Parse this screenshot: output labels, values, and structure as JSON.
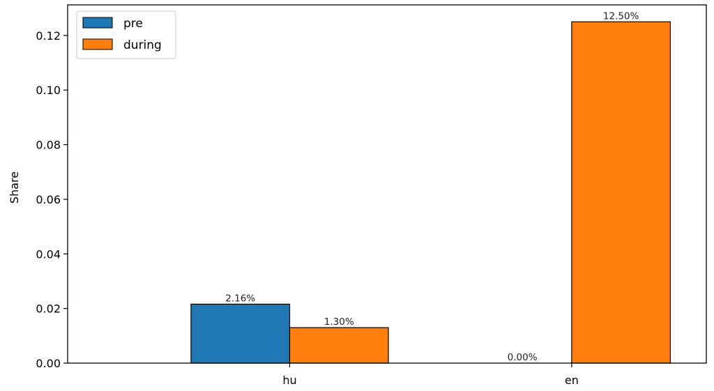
{
  "chart_data": {
    "type": "bar",
    "title": "",
    "xlabel": "",
    "ylabel": "Share",
    "categories": [
      "hu",
      "en"
    ],
    "series": [
      {
        "name": "pre",
        "values": [
          0.0216,
          0.0
        ],
        "labels": [
          "2.16%",
          "0.00%"
        ],
        "color": "#1f77b4"
      },
      {
        "name": "during",
        "values": [
          0.013,
          0.125
        ],
        "labels": [
          "1.30%",
          "12.50%"
        ],
        "color": "#ff7f0e"
      }
    ],
    "ylim": [
      0,
      0.1312
    ],
    "yticks": [
      0.0,
      0.02,
      0.04,
      0.06,
      0.08,
      0.1,
      0.12
    ],
    "ytick_labels": [
      "0.00",
      "0.02",
      "0.04",
      "0.06",
      "0.08",
      "0.10",
      "0.12"
    ],
    "grid": false,
    "legend_position": "top-left"
  }
}
